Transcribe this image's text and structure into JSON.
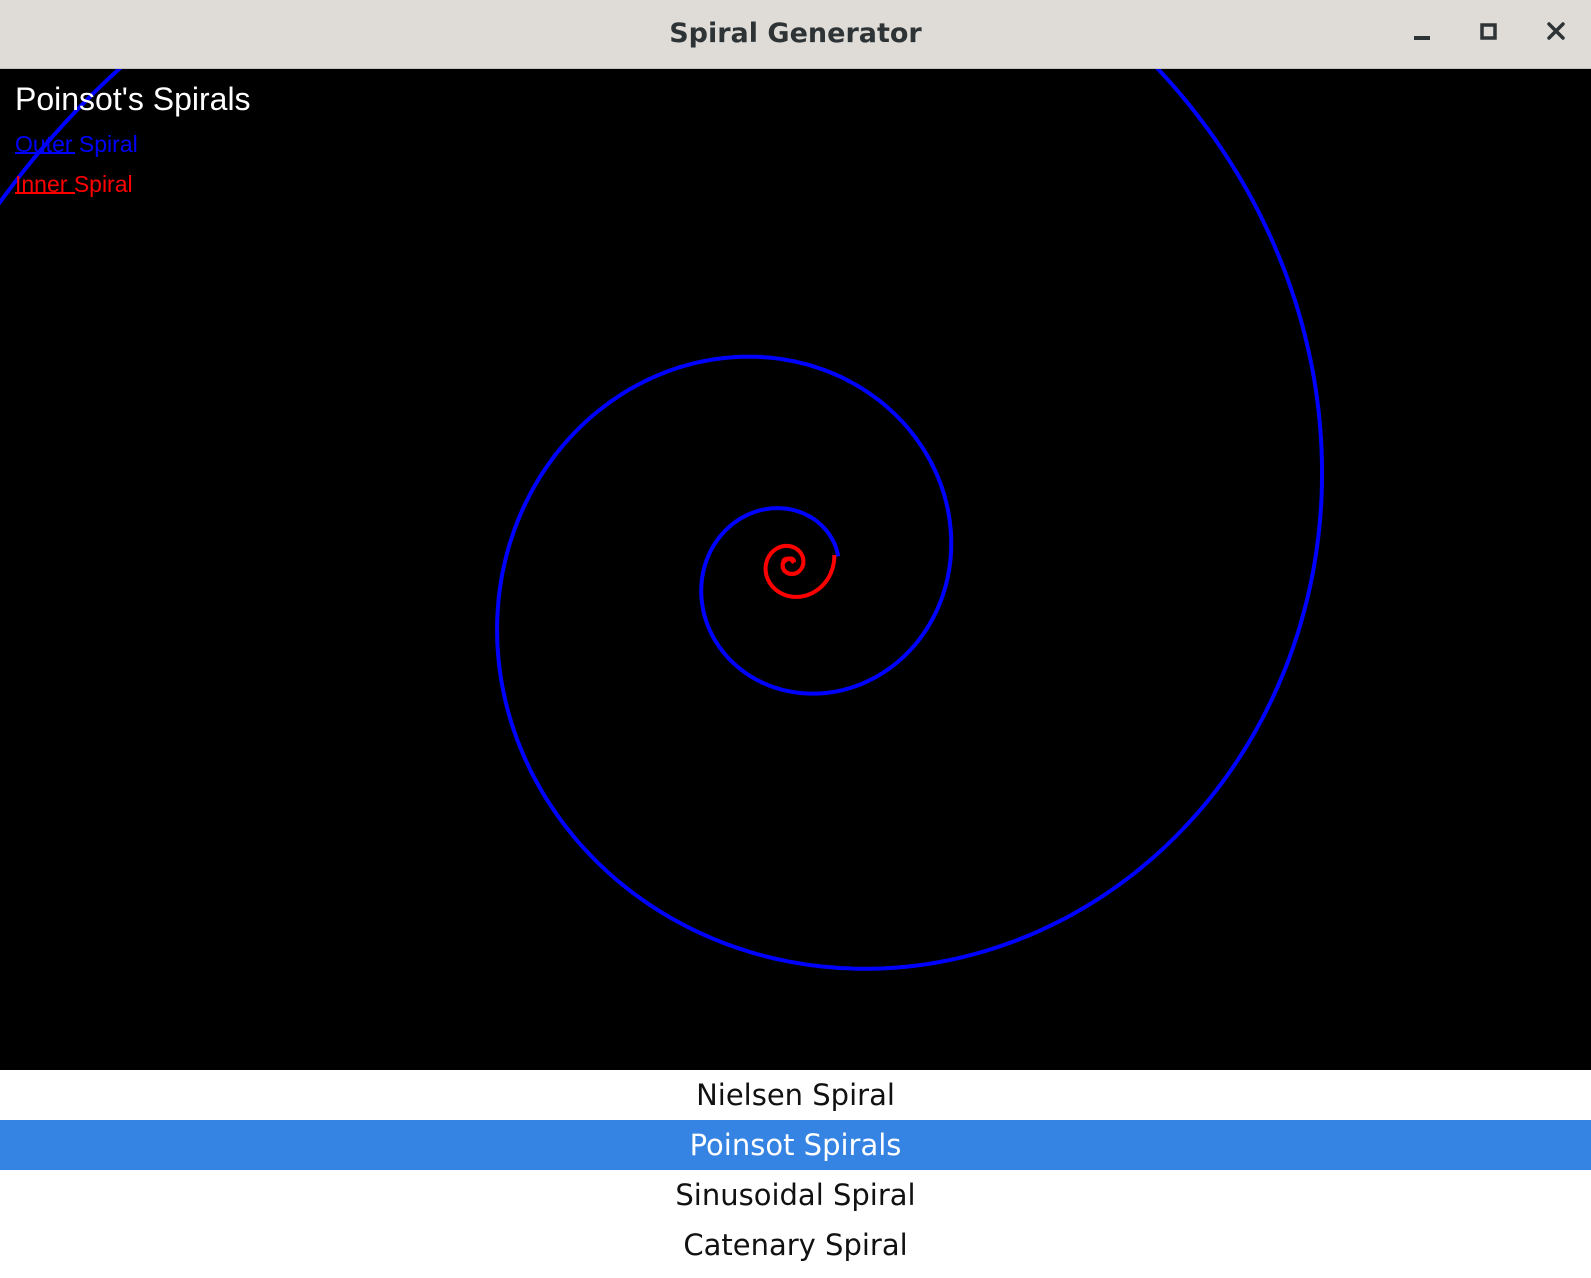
{
  "window": {
    "title": "Spiral Generator",
    "controls": [
      "minimize-icon",
      "maximize-icon",
      "close-icon"
    ]
  },
  "canvas": {
    "background": "#000000",
    "title": "Poinsot's Spirals",
    "title_color": "#ffffff",
    "legend": [
      {
        "label": "Outer Spiral",
        "color": "#0000ff"
      },
      {
        "label": "Inner Spiral",
        "color": "#ff0000"
      }
    ]
  },
  "spiral_list": {
    "selected_color": "#3584e4",
    "items": [
      {
        "label": "Nielsen Spiral",
        "selected": false
      },
      {
        "label": "Poinsot Spirals",
        "selected": true
      },
      {
        "label": "Sinusoidal Spiral",
        "selected": false
      },
      {
        "label": "Catenary Spiral",
        "selected": false
      },
      {
        "label": "",
        "selected": false
      }
    ]
  }
}
